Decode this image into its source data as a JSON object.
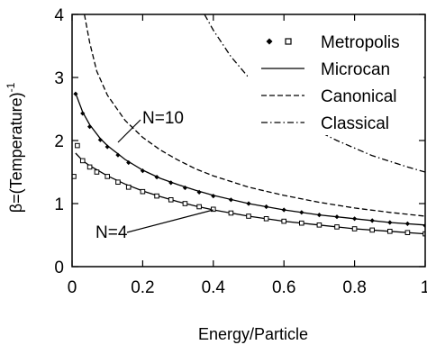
{
  "chart_data": {
    "type": "line",
    "xlabel": "Energy/Particle",
    "ylabel_prefix": "β=(Temperature)",
    "ylabel_superscript": "-1",
    "xlim": [
      0,
      1
    ],
    "ylim": [
      0,
      4
    ],
    "x_ticks": [
      0,
      0.2,
      0.4,
      0.6,
      0.8,
      1
    ],
    "x_tick_labels": [
      "0",
      "0.2",
      "0.4",
      "0.6",
      "0.8",
      "1"
    ],
    "y_ticks": [
      0,
      1,
      2,
      3,
      4
    ],
    "y_tick_labels": [
      "0",
      "1",
      "2",
      "3",
      "4"
    ],
    "grid": false,
    "legend_position": "top-right",
    "legend": [
      {
        "label": "Metropolis",
        "style": "markers (filled diamond, open square)"
      },
      {
        "label": "Microcan",
        "style": "solid"
      },
      {
        "label": "Canonical",
        "style": "dashed"
      },
      {
        "label": "Classical",
        "style": "dash-dot"
      }
    ],
    "annotations": [
      {
        "text": "N=10",
        "points_to": [
          0.25,
          1.5
        ]
      },
      {
        "text": "N=4",
        "points_to": [
          0.4,
          0.9
        ]
      }
    ],
    "series": [
      {
        "name": "Classical",
        "style": "dash-dot",
        "x": [
          0.375,
          0.4,
          0.45,
          0.5,
          0.55,
          0.6,
          0.65,
          0.7,
          0.75,
          0.8,
          0.85,
          0.9,
          0.95,
          1.0
        ],
        "y": [
          4.0,
          3.75,
          3.33,
          3.0,
          2.73,
          2.5,
          2.31,
          2.14,
          2.0,
          1.88,
          1.76,
          1.67,
          1.58,
          1.5
        ]
      },
      {
        "name": "Canonical",
        "style": "dashed",
        "x": [
          0.035,
          0.05,
          0.07,
          0.1,
          0.15,
          0.2,
          0.25,
          0.3,
          0.35,
          0.4,
          0.5,
          0.6,
          0.7,
          0.8,
          0.9,
          1.0
        ],
        "y": [
          4.0,
          3.55,
          3.1,
          2.72,
          2.32,
          2.05,
          1.85,
          1.69,
          1.55,
          1.44,
          1.26,
          1.13,
          1.02,
          0.93,
          0.86,
          0.8
        ]
      },
      {
        "name": "Microcan N=10",
        "style": "solid",
        "x": [
          0.01,
          0.03,
          0.05,
          0.08,
          0.1,
          0.15,
          0.2,
          0.25,
          0.3,
          0.35,
          0.4,
          0.5,
          0.6,
          0.7,
          0.8,
          0.9,
          1.0
        ],
        "y": [
          2.75,
          2.45,
          2.25,
          2.03,
          1.92,
          1.7,
          1.53,
          1.4,
          1.3,
          1.21,
          1.13,
          1.0,
          0.9,
          0.82,
          0.76,
          0.7,
          0.66
        ]
      },
      {
        "name": "Microcan N=4",
        "style": "solid",
        "x": [
          0.01,
          0.03,
          0.05,
          0.1,
          0.15,
          0.2,
          0.25,
          0.3,
          0.35,
          0.4,
          0.5,
          0.6,
          0.7,
          0.8,
          0.9,
          1.0
        ],
        "y": [
          1.8,
          1.68,
          1.6,
          1.44,
          1.31,
          1.2,
          1.11,
          1.03,
          0.96,
          0.9,
          0.8,
          0.72,
          0.66,
          0.6,
          0.56,
          0.52
        ]
      },
      {
        "name": "Metropolis N=10",
        "marker": "diamond",
        "x": [
          0.01,
          0.03,
          0.05,
          0.08,
          0.1,
          0.13,
          0.16,
          0.2,
          0.24,
          0.28,
          0.32,
          0.36,
          0.4,
          0.45,
          0.5,
          0.55,
          0.6,
          0.65,
          0.7,
          0.75,
          0.8,
          0.85,
          0.9,
          0.95,
          1.0
        ],
        "y": [
          2.74,
          2.43,
          2.22,
          2.01,
          1.9,
          1.77,
          1.65,
          1.52,
          1.42,
          1.33,
          1.25,
          1.18,
          1.12,
          1.06,
          1.0,
          0.95,
          0.9,
          0.86,
          0.82,
          0.79,
          0.76,
          0.73,
          0.7,
          0.68,
          0.65
        ]
      },
      {
        "name": "Metropolis N=4",
        "marker": "square",
        "x": [
          0.005,
          0.015,
          0.03,
          0.05,
          0.07,
          0.1,
          0.13,
          0.16,
          0.2,
          0.24,
          0.28,
          0.32,
          0.36,
          0.4,
          0.45,
          0.5,
          0.55,
          0.6,
          0.65,
          0.7,
          0.75,
          0.8,
          0.85,
          0.9,
          0.95,
          1.0
        ],
        "y": [
          1.43,
          1.92,
          1.68,
          1.58,
          1.5,
          1.43,
          1.34,
          1.26,
          1.19,
          1.12,
          1.06,
          1.0,
          0.95,
          0.91,
          0.85,
          0.8,
          0.76,
          0.72,
          0.69,
          0.66,
          0.63,
          0.6,
          0.58,
          0.56,
          0.54,
          0.52
        ]
      }
    ]
  }
}
